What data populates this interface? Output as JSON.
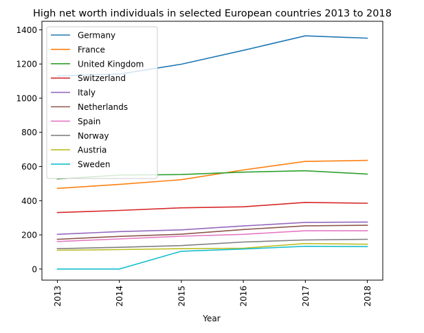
{
  "chart_data": {
    "type": "line",
    "title": "High net worth individuals in selected European countries 2013 to 2018",
    "xlabel": "Year",
    "ylabel": "",
    "x": [
      "2013",
      "2014",
      "2015",
      "2016",
      "2017",
      "2018"
    ],
    "ylim": [
      -65,
      1450
    ],
    "yticks": [
      0,
      200,
      400,
      600,
      800,
      1000,
      1200,
      1400
    ],
    "grid": false,
    "legend_position": "upper-left",
    "series": [
      {
        "name": "Germany",
        "color": "#1f77b4",
        "values": [
          1130,
          1141,
          1199,
          1280,
          1365,
          1351
        ]
      },
      {
        "name": "France",
        "color": "#ff7f0e",
        "values": [
          472,
          495,
          523,
          580,
          630,
          636
        ]
      },
      {
        "name": "United Kingdom",
        "color": "#2ca02c",
        "values": [
          527,
          550,
          553,
          567,
          575,
          556
        ]
      },
      {
        "name": "Switzerland",
        "color": "#d62728",
        "values": [
          331,
          343,
          358,
          364,
          390,
          385
        ]
      },
      {
        "name": "Italy",
        "color": "#9467bd",
        "values": [
          203,
          219,
          229,
          252,
          273,
          275
        ]
      },
      {
        "name": "Netherlands",
        "color": "#8c564b",
        "values": [
          174,
          191,
          204,
          231,
          253,
          256
        ]
      },
      {
        "name": "Spain",
        "color": "#e377c2",
        "values": [
          161,
          176,
          192,
          203,
          224,
          224
        ]
      },
      {
        "name": "Norway",
        "color": "#7f7f7f",
        "values": [
          119,
          127,
          137,
          158,
          170,
          174
        ]
      },
      {
        "name": "Austria",
        "color": "#bcbd22",
        "values": [
          110,
          114,
          119,
          122,
          149,
          145
        ]
      },
      {
        "name": "Sweden",
        "color": "#17becf",
        "values": [
          0,
          0,
          104,
          117,
          133,
          131
        ]
      }
    ]
  }
}
